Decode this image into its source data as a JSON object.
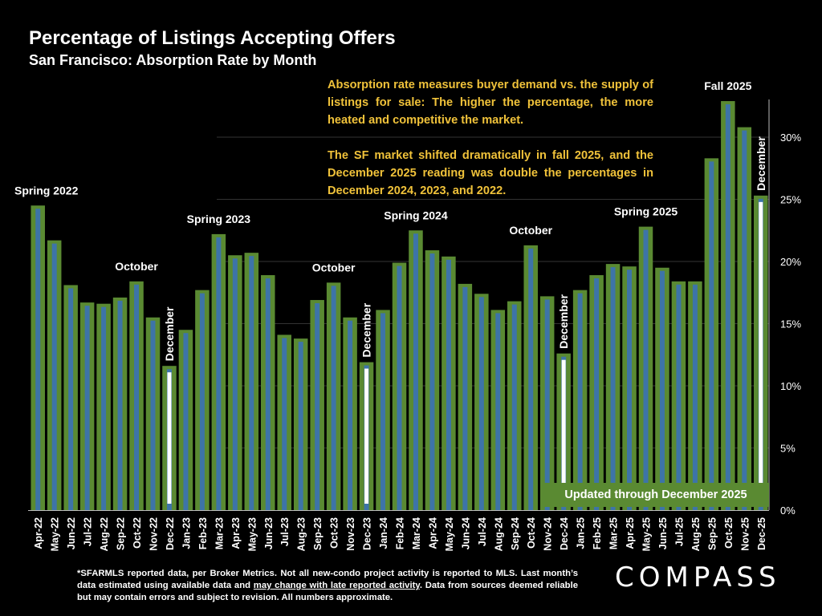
{
  "title": "Percentage of Listings Accepting Offers",
  "subtitle": "San Francisco:  Absorption Rate by Month",
  "annotation_1": "Absorption rate measures buyer demand vs. the supply of listings for sale: The higher the percentage, the more heated and competitive the market.",
  "annotation_2": "The SF market shifted dramatically in fall 2025, and the December 2025 reading was double the percentages in December 2024, 2023, and 2022.",
  "updated_label": "Updated through December 2025",
  "footnote": {
    "part1": "*SFARMLS reported data, per Broker Metrics. Not all new-condo project activity is reported to MLS. Last month’s data estimated using available data and ",
    "underlined": "may change with late reported activity",
    "part2": ". Data from sources deemed reliable but may contain errors and subject to revision. All numbers approximate."
  },
  "logo": "COMPASS",
  "colors": {
    "bar_outer": "#5a8a32",
    "bar_inner": "#3d74a8",
    "annotation": "#f0c23a",
    "background": "#000000"
  },
  "chart_data": {
    "type": "bar",
    "categories": [
      "Apr-22",
      "May-22",
      "Jun-22",
      "Jul-22",
      "Aug-22",
      "Sep-22",
      "Oct-22",
      "Nov-22",
      "Dec-22",
      "Jan-23",
      "Feb-23",
      "Mar-23",
      "Apr-23",
      "May-23",
      "Jun-23",
      "Jul-23",
      "Aug-23",
      "Sep-23",
      "Oct-23",
      "Nov-23",
      "Dec-23",
      "Jan-24",
      "Feb-24",
      "Mar-24",
      "Apr-24",
      "May-24",
      "Jun-24",
      "Jul-24",
      "Aug-24",
      "Sep-24",
      "Oct-24",
      "Nov-24",
      "Dec-24",
      "Jan-25",
      "Feb-25",
      "Mar-25",
      "Apr-25",
      "May-25",
      "Jun-25",
      "Jul-25",
      "Aug-25",
      "Sep-25",
      "Oct-25",
      "Nov-25",
      "Dec-25"
    ],
    "values": [
      24.5,
      21.7,
      18.1,
      16.7,
      16.6,
      17.1,
      18.4,
      15.5,
      11.6,
      14.5,
      17.7,
      22.2,
      20.5,
      20.7,
      18.9,
      14.1,
      13.8,
      16.9,
      18.3,
      15.5,
      11.9,
      16.1,
      19.9,
      22.5,
      20.9,
      20.4,
      18.2,
      17.4,
      16.1,
      16.8,
      21.3,
      17.2,
      12.6,
      17.7,
      18.9,
      19.8,
      19.6,
      22.8,
      19.5,
      18.4,
      18.4,
      28.3,
      32.9,
      30.8,
      25.3
    ],
    "ylim": [
      0,
      33
    ],
    "yticks": [
      "0%",
      "5%",
      "10%",
      "15%",
      "20%",
      "25%",
      "30%"
    ],
    "ytick_values": [
      0,
      5,
      10,
      15,
      20,
      25,
      30
    ],
    "grid": true,
    "annotations": [
      {
        "text": "Spring 2022",
        "index": 0
      },
      {
        "text": "October",
        "index": 6
      },
      {
        "text": "Spring 2023",
        "index": 11
      },
      {
        "text": "October",
        "index": 18
      },
      {
        "text": "Spring 2024",
        "index": 23
      },
      {
        "text": "October",
        "index": 30
      },
      {
        "text": "Spring 2025",
        "index": 37
      },
      {
        "text": "Fall 2025",
        "index": 42
      }
    ],
    "december_markers": [
      {
        "text": "December",
        "index": 8
      },
      {
        "text": "December",
        "index": 20
      },
      {
        "text": "December",
        "index": 32
      },
      {
        "text": "December",
        "index": 44
      }
    ]
  }
}
